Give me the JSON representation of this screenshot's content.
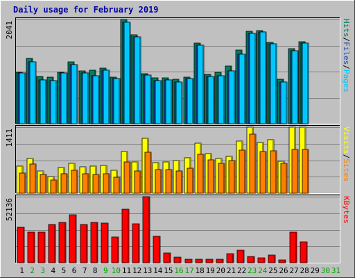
{
  "chart_data": {
    "type": "bar",
    "title": "Daily usage for February 2019",
    "categories": [
      "1",
      "2",
      "3",
      "4",
      "5",
      "6",
      "7",
      "8",
      "9",
      "10",
      "11",
      "12",
      "13",
      "14",
      "15",
      "16",
      "17",
      "18",
      "19",
      "20",
      "21",
      "22",
      "23",
      "24",
      "25",
      "26",
      "27",
      "28",
      "29",
      "30",
      "31"
    ],
    "weekend_days": [
      "2",
      "3",
      "9",
      "10",
      "16",
      "17",
      "23",
      "24",
      "30",
      "31"
    ],
    "panels": [
      {
        "ylabel_parts": [
          "Pages",
          "Files",
          "Hits"
        ],
        "ylabel_colors": [
          "#00c8ff",
          "#2050c0",
          "#008060"
        ],
        "max_label": "2041",
        "ymax": 2041,
        "series": [
          {
            "name": "Hits",
            "color": "#008060",
            "values": [
              1005,
              1279,
              930,
              917,
              1005,
              1206,
              1037,
              1051,
              1088,
              918,
              2041,
              1740,
              986,
              892,
              904,
              865,
              914,
              1579,
              965,
              1003,
              1131,
              1438,
              1805,
              1827,
              1594,
              875,
              1476,
              1606,
              0,
              0,
              0
            ]
          },
          {
            "name": "Files",
            "color": "#2050c0",
            "values": [
              995,
              1217,
              860,
              841,
              990,
              1150,
              1000,
              945,
              1050,
              880,
              1980,
              1700,
              950,
              841,
              860,
              810,
              890,
              1540,
              925,
              940,
              1030,
              1360,
              1770,
              1790,
              1560,
              820,
              1425,
              1575,
              0,
              0,
              0
            ]
          },
          {
            "name": "Pages",
            "color": "#00c8ff",
            "values": [
              995,
              1217,
              860,
              841,
              990,
              1150,
              1000,
              945,
              1050,
              880,
              1980,
              1700,
              950,
              841,
              860,
              810,
              890,
              1540,
              925,
              940,
              1030,
              1360,
              1770,
              1790,
              1560,
              820,
              1425,
              1575,
              0,
              0,
              0
            ]
          }
        ]
      },
      {
        "ylabel_parts": [
          "Sites",
          "Visits"
        ],
        "ylabel_colors": [
          "#ff8000",
          "#ffff00"
        ],
        "max_label": "1411",
        "ymax": 1411,
        "series": [
          {
            "name": "Visits",
            "color": "#ffff00",
            "values": [
              573,
              741,
              474,
              363,
              554,
              643,
              562,
              584,
              599,
              488,
              889,
              667,
              1167,
              648,
              670,
              697,
              758,
              1065,
              850,
              749,
              782,
              1117,
              1411,
              1080,
              1148,
              680,
              1411,
              1411,
              0,
              0,
              0
            ]
          },
          {
            "name": "Sites",
            "color": "#ff8000",
            "values": [
              425,
              622,
              396,
              285,
              410,
              485,
              419,
              400,
              418,
              336,
              662,
              481,
              879,
              498,
              498,
              475,
              535,
              836,
              709,
              645,
              698,
              922,
              1258,
              892,
              902,
              639,
              939,
              936,
              0,
              0,
              0
            ]
          }
        ]
      },
      {
        "ylabel_parts": [
          "KBytes"
        ],
        "ylabel_colors": [
          "#ff0000"
        ],
        "max_label": "52136",
        "ymax": 52136,
        "series": [
          {
            "name": "KBytes",
            "color": "#ff0000",
            "values": [
              27810,
              23890,
              23890,
              30080,
              31820,
              38120,
              30080,
              31820,
              31270,
              20420,
              42130,
              30620,
              52136,
              20890,
              7870,
              4600,
              2610,
              3000,
              3000,
              2860,
              7200,
              10150,
              5210,
              3750,
              6250,
              2150,
              24210,
              16720,
              0,
              0,
              0
            ]
          }
        ]
      }
    ]
  }
}
